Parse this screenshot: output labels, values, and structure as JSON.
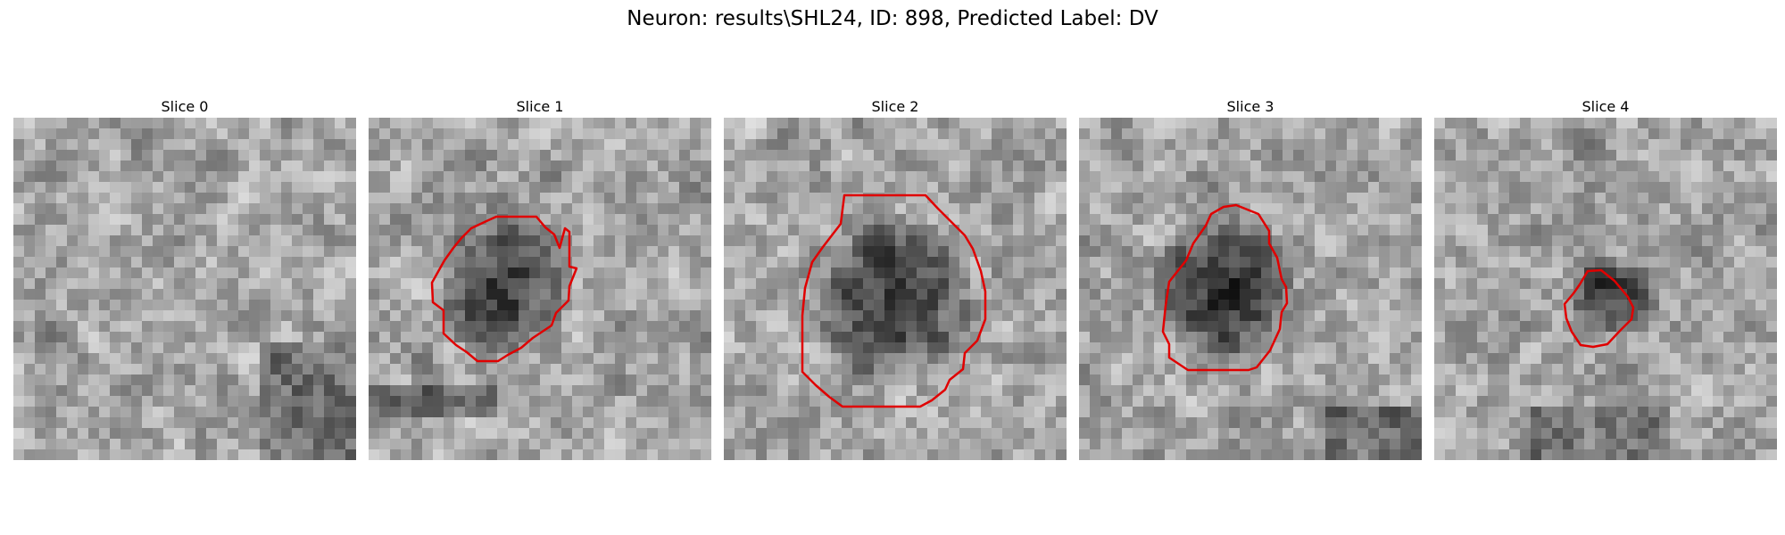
{
  "figure": {
    "title": "Neuron: results\\SHL24, ID: 898, Predicted Label: DV",
    "contour_color": "#e00000"
  },
  "panels": [
    {
      "title": "Slice 0",
      "contour": [],
      "texture": "irregular grayscale noise, mid-gray with darker diagonal band lower right",
      "dark_blob": null
    },
    {
      "title": "Slice 1",
      "contour": [
        [
          143,
          111
        ],
        [
          188,
          111
        ],
        [
          198,
          123
        ],
        [
          208,
          131
        ],
        [
          214,
          146
        ],
        [
          220,
          124
        ],
        [
          225,
          128
        ],
        [
          225,
          167
        ],
        [
          233,
          169
        ],
        [
          225,
          189
        ],
        [
          224,
          205
        ],
        [
          210,
          219
        ],
        [
          205,
          233
        ],
        [
          184,
          247
        ],
        [
          171,
          258
        ],
        [
          156,
          266
        ],
        [
          145,
          273
        ],
        [
          122,
          273
        ],
        [
          110,
          263
        ],
        [
          98,
          255
        ],
        [
          84,
          242
        ],
        [
          84,
          216
        ],
        [
          72,
          207
        ],
        [
          71,
          185
        ],
        [
          85,
          160
        ],
        [
          95,
          146
        ],
        [
          104,
          135
        ],
        [
          115,
          124
        ],
        [
          132,
          116
        ]
      ],
      "texture": "grayscale noise with dark band lower left",
      "dark_blob": [
        150,
        190,
        70,
        75
      ]
    },
    {
      "title": "Slice 2",
      "contour": [
        [
          135,
          87
        ],
        [
          156,
          87
        ],
        [
          226,
          87
        ],
        [
          240,
          102
        ],
        [
          270,
          132
        ],
        [
          279,
          147
        ],
        [
          288,
          172
        ],
        [
          293,
          195
        ],
        [
          293,
          226
        ],
        [
          284,
          250
        ],
        [
          270,
          264
        ],
        [
          268,
          282
        ],
        [
          253,
          294
        ],
        [
          248,
          305
        ],
        [
          233,
          317
        ],
        [
          220,
          324
        ],
        [
          187,
          324
        ],
        [
          133,
          324
        ],
        [
          118,
          313
        ],
        [
          103,
          300
        ],
        [
          88,
          285
        ],
        [
          88,
          255
        ],
        [
          88,
          222
        ],
        [
          91,
          191
        ],
        [
          99,
          162
        ],
        [
          111,
          145
        ],
        [
          131,
          119
        ]
      ],
      "texture": "grayscale noise, lighter surround",
      "dark_blob": [
        192,
        205,
        82,
        90
      ]
    },
    {
      "title": "Slice 3",
      "contour": [
        [
          162,
          100
        ],
        [
          176,
          98
        ],
        [
          201,
          108
        ],
        [
          213,
          127
        ],
        [
          213,
          141
        ],
        [
          222,
          157
        ],
        [
          227,
          181
        ],
        [
          232,
          190
        ],
        [
          233,
          208
        ],
        [
          227,
          218
        ],
        [
          225,
          237
        ],
        [
          214,
          261
        ],
        [
          199,
          280
        ],
        [
          190,
          283
        ],
        [
          141,
          283
        ],
        [
          122,
          283
        ],
        [
          101,
          269
        ],
        [
          101,
          254
        ],
        [
          94,
          240
        ],
        [
          97,
          211
        ],
        [
          101,
          184
        ],
        [
          120,
          160
        ],
        [
          128,
          141
        ],
        [
          142,
          121
        ],
        [
          148,
          108
        ]
      ],
      "texture": "coarse grayscale noise",
      "dark_blob": [
        162,
        195,
        72,
        88
      ]
    },
    {
      "title": "Slice 4",
      "contour": [
        [
          172,
          172
        ],
        [
          187,
          171
        ],
        [
          202,
          183
        ],
        [
          217,
          201
        ],
        [
          223,
          213
        ],
        [
          221,
          226
        ],
        [
          208,
          239
        ],
        [
          194,
          254
        ],
        [
          178,
          257
        ],
        [
          164,
          255
        ],
        [
          154,
          240
        ],
        [
          148,
          225
        ],
        [
          146,
          209
        ],
        [
          156,
          197
        ],
        [
          163,
          187
        ]
      ],
      "texture": "grayscale noise, blob upper right",
      "dark_blob": [
        200,
        200,
        55,
        45
      ]
    }
  ]
}
